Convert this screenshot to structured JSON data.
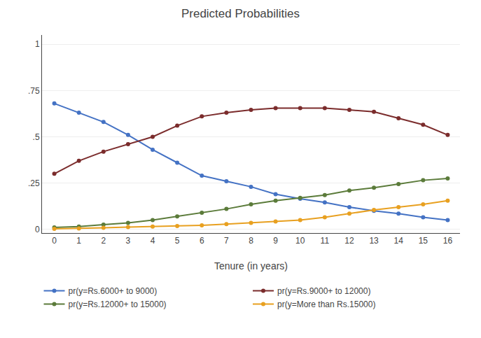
{
  "chart_data": {
    "type": "line",
    "title": "Predicted Probabilities",
    "x_label": "Tenure (in years)",
    "x": [
      0,
      1,
      2,
      3,
      4,
      5,
      6,
      7,
      8,
      9,
      10,
      11,
      12,
      13,
      14,
      15,
      16
    ],
    "series": [
      {
        "name": "pr(y=Rs.6000+ to 9000)",
        "color": "#4472C4",
        "marker": "circle",
        "line_style": "solid",
        "values": [
          0.68,
          0.63,
          0.58,
          0.51,
          0.43,
          0.36,
          0.29,
          0.26,
          0.23,
          0.19,
          0.165,
          0.145,
          0.12,
          0.1,
          0.085,
          0.065,
          0.05
        ]
      },
      {
        "name": "pr(y=Rs.9000+ to 12000)",
        "color": "#7B2C2C",
        "marker": "circle",
        "line_style": "solid",
        "values": [
          0.3,
          0.37,
          0.42,
          0.46,
          0.5,
          0.56,
          0.61,
          0.63,
          0.645,
          0.655,
          0.655,
          0.655,
          0.645,
          0.635,
          0.6,
          0.565,
          0.51
        ]
      },
      {
        "name": "pr(y=Rs.12000+ to 15000)",
        "color": "#5B7B3A",
        "marker": "circle",
        "line_style": "solid",
        "values": [
          0.01,
          0.015,
          0.025,
          0.035,
          0.05,
          0.07,
          0.09,
          0.11,
          0.135,
          0.155,
          0.17,
          0.185,
          0.21,
          0.225,
          0.245,
          0.265,
          0.275
        ]
      },
      {
        "name": "pr(y=More than Rs.15000)",
        "color": "#E8A020",
        "marker": "circle",
        "line_style": "solid",
        "values": [
          0.003,
          0.005,
          0.008,
          0.012,
          0.015,
          0.018,
          0.022,
          0.028,
          0.035,
          0.042,
          0.05,
          0.065,
          0.085,
          0.105,
          0.12,
          0.135,
          0.155
        ]
      }
    ],
    "xlim": [
      -0.5,
      16.5
    ],
    "xticks": [
      0,
      1,
      2,
      3,
      4,
      5,
      6,
      7,
      8,
      9,
      10,
      11,
      12,
      13,
      14,
      15,
      16
    ],
    "ylim": [
      -0.02,
      1.05
    ],
    "yticks": [
      0,
      {
        "value": 0.25,
        "label": ".25"
      },
      {
        "value": 0.5,
        "label": ".5"
      },
      {
        "value": 0.75,
        "label": ".75"
      },
      {
        "value": 1.0,
        "label": "1"
      }
    ],
    "grid": true,
    "legend": "bottom"
  }
}
